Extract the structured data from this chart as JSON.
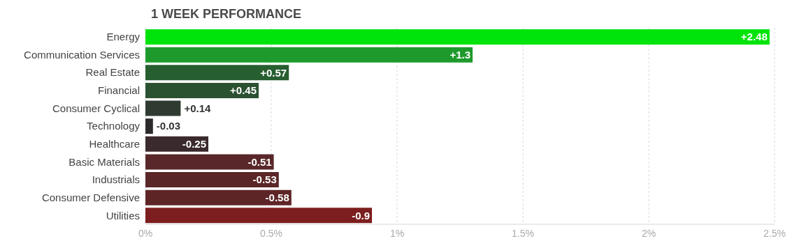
{
  "chart_data": {
    "type": "bar",
    "orientation": "horizontal",
    "title": "1 WEEK PERFORMANCE",
    "categories": [
      "Energy",
      "Communication Services",
      "Real Estate",
      "Financial",
      "Consumer Cyclical",
      "Technology",
      "Healthcare",
      "Basic Materials",
      "Industrials",
      "Consumer Defensive",
      "Utilities"
    ],
    "values": [
      2.48,
      1.3,
      0.57,
      0.45,
      0.14,
      -0.03,
      -0.25,
      -0.51,
      -0.53,
      -0.58,
      -0.9
    ],
    "base": [
      0,
      0,
      0,
      0,
      0,
      0.03,
      0.25,
      0.51,
      0.53,
      0.58,
      0.9
    ],
    "value_labels": [
      "+2.48",
      "+1.3",
      "+0.57",
      "+0.45",
      "+0.14",
      "-0.03",
      "-0.25",
      "-0.51",
      "-0.53",
      "-0.58",
      "-0.9"
    ],
    "colors": [
      "#00e40c",
      "#1e9a2c",
      "#275e30",
      "#2a5130",
      "#2f3b30",
      "#2d2a2b",
      "#3a2a2d",
      "#592729",
      "#5b2628",
      "#5e2527",
      "#7c1e1f"
    ],
    "xlim": [
      0,
      2.5
    ],
    "xticks": [
      {
        "value": 0,
        "label": "0%"
      },
      {
        "value": 0.5,
        "label": "0.5%"
      },
      {
        "value": 1,
        "label": "1%"
      },
      {
        "value": 1.5,
        "label": "1.5%"
      },
      {
        "value": 2,
        "label": "2%"
      },
      {
        "value": 2.5,
        "label": "2.5%"
      }
    ],
    "grid": "x"
  }
}
